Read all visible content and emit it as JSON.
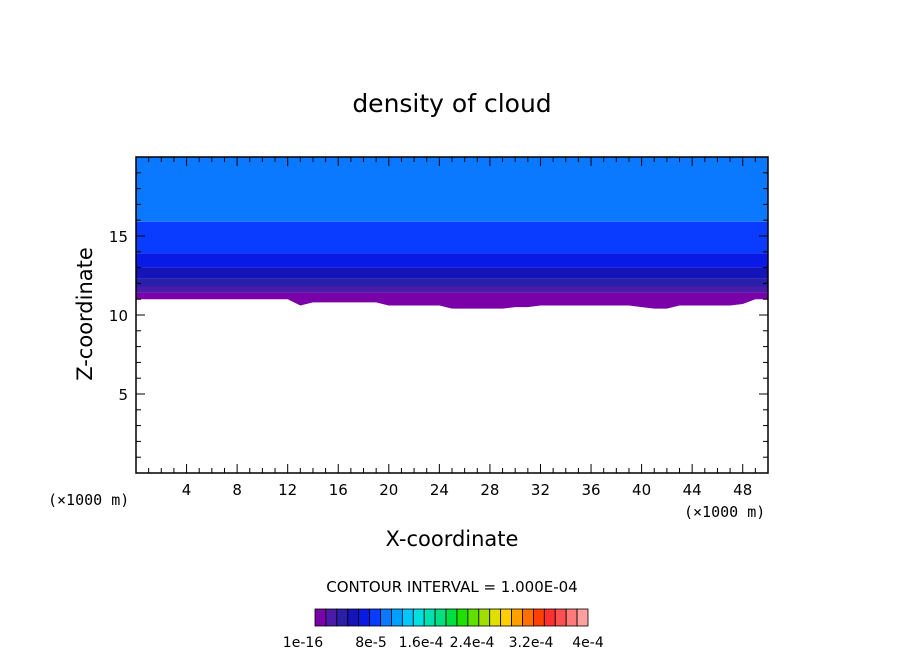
{
  "chart_data": {
    "type": "heatmap",
    "title": "density of cloud",
    "xlabel": "X-coordinate",
    "ylabel": "Z-coordinate",
    "x_unit_label_left": "(×1000 m)",
    "x_unit_label_right": "(×1000 m)",
    "xlim": [
      0,
      50
    ],
    "ylim": [
      0,
      20
    ],
    "x_ticks": [
      4,
      8,
      12,
      16,
      20,
      24,
      28,
      32,
      36,
      40,
      44,
      48
    ],
    "y_ticks": [
      5,
      10,
      15
    ],
    "cloud_base_z": [
      11.0,
      11.0,
      11.0,
      11.0,
      11.0,
      11.0,
      11.0,
      11.0,
      11.0,
      11.0,
      11.0,
      11.0,
      11.0,
      10.6,
      10.8,
      10.8,
      10.8,
      10.8,
      10.8,
      10.8,
      10.6,
      10.6,
      10.6,
      10.6,
      10.6,
      10.4,
      10.4,
      10.4,
      10.4,
      10.4,
      10.5,
      10.5,
      10.6,
      10.6,
      10.6,
      10.6,
      10.6,
      10.6,
      10.6,
      10.6,
      10.5,
      10.4,
      10.4,
      10.6,
      10.6,
      10.6,
      10.6,
      10.6,
      10.7,
      11.0,
      11.0
    ],
    "bands": [
      {
        "bottom": 11.0,
        "top": 11.4,
        "color": "#7a00a8"
      },
      {
        "bottom": 11.4,
        "top": 11.8,
        "color": "#4a1aa8"
      },
      {
        "bottom": 11.8,
        "top": 12.3,
        "color": "#2a1fa8"
      },
      {
        "bottom": 12.3,
        "top": 13.0,
        "color": "#1414b8"
      },
      {
        "bottom": 13.0,
        "top": 13.9,
        "color": "#0a1ae6"
      },
      {
        "bottom": 13.9,
        "top": 15.9,
        "color": "#0a3cff"
      },
      {
        "bottom": 15.9,
        "top": 20.0,
        "color": "#0a78ff"
      }
    ],
    "legend": {
      "header": "CONTOUR INTERVAL = 1.000E-04",
      "tick_labels": [
        "1e-16",
        "8e-5",
        "1.6e-4",
        "2.4e-4",
        "3.2e-4",
        "4e-4"
      ],
      "colors": [
        "#7a00a8",
        "#4a1aa8",
        "#2a1fa8",
        "#1414b8",
        "#0a1ae6",
        "#0a3cff",
        "#0a78ff",
        "#00a0ff",
        "#00c8ff",
        "#00e0e0",
        "#00e0b0",
        "#00e080",
        "#00e040",
        "#20e000",
        "#60e000",
        "#a0e000",
        "#e0e000",
        "#ffd000",
        "#ffa000",
        "#ff7000",
        "#ff4000",
        "#ff3030",
        "#ff5050",
        "#ff7a7a",
        "#ffa0a0"
      ]
    }
  }
}
